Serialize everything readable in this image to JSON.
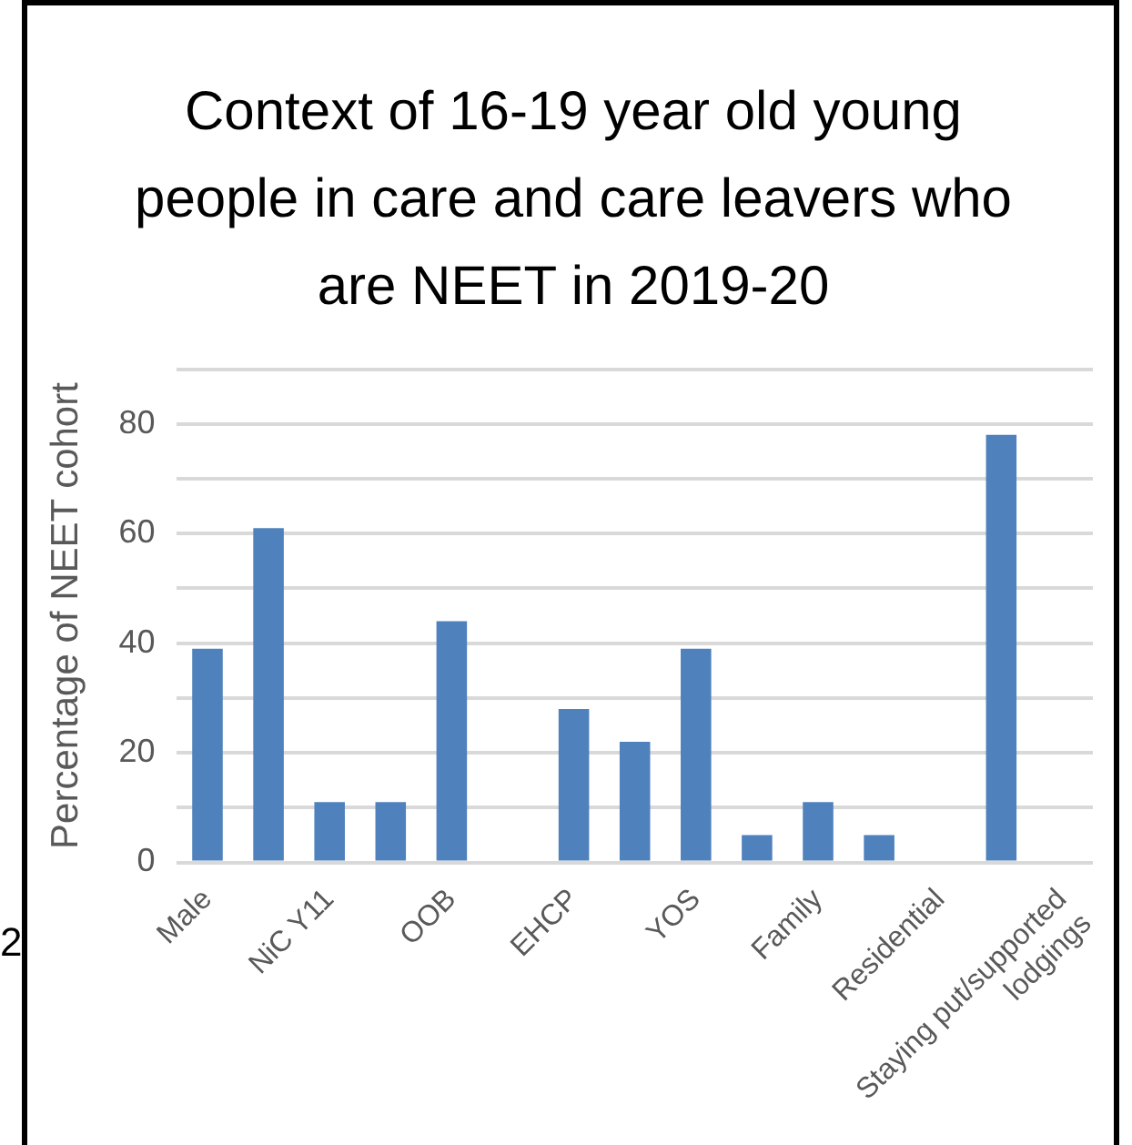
{
  "chart_data": {
    "type": "bar",
    "title": "Context of 16-19 year old young people in care and care leavers who are NEET in 2019-20",
    "ylabel": "Percentage of NEET cohort",
    "categories": [
      "Male",
      null,
      "NiC Y11",
      null,
      "OOB",
      null,
      "EHCP",
      null,
      "YOS",
      null,
      "Family",
      null,
      "Residential",
      null,
      "Staying put/supported lodgings"
    ],
    "values": [
      39,
      61,
      11,
      11,
      44,
      0,
      28,
      22,
      39,
      5,
      11,
      5,
      0,
      78,
      0
    ],
    "color": "#4f81bd",
    "ylim": [
      0,
      90
    ],
    "yticks": [
      0,
      {
        "value": 10,
        "label": null
      },
      20,
      {
        "value": 30,
        "label": null
      },
      40,
      {
        "value": 50,
        "label": null
      },
      60,
      {
        "value": 70,
        "label": null
      },
      80,
      {
        "value": 90,
        "label": null
      }
    ],
    "grid": "y",
    "legend": false,
    "annotations": [
      "2"
    ]
  }
}
